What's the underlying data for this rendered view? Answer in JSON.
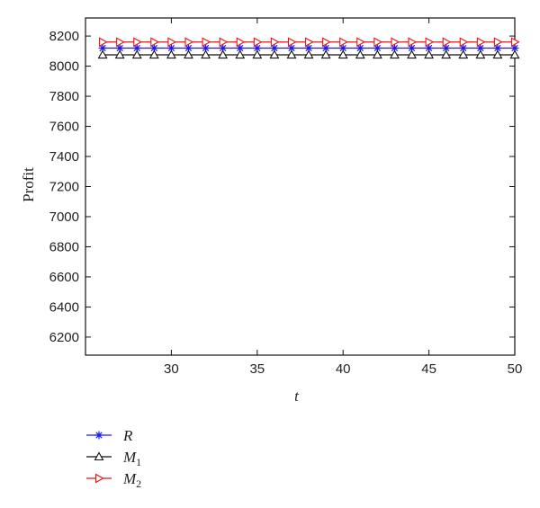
{
  "chart_data": {
    "type": "line",
    "title": "",
    "xlabel": "t",
    "ylabel": "Profit",
    "xlim": [
      25,
      50
    ],
    "ylim": [
      6080,
      8320
    ],
    "x_ticks": [
      30,
      35,
      40,
      45,
      50
    ],
    "y_ticks": [
      6200,
      6400,
      6600,
      6800,
      7000,
      7200,
      7400,
      7600,
      7800,
      8000,
      8200
    ],
    "grid": false,
    "legend_position": "below-left",
    "x": [
      26,
      27,
      28,
      29,
      30,
      31,
      32,
      33,
      34,
      35,
      36,
      37,
      38,
      39,
      40,
      41,
      42,
      43,
      44,
      45,
      46,
      47,
      48,
      49,
      50
    ],
    "series": [
      {
        "name": "R",
        "name_sub": "",
        "color": "#1a1aff",
        "marker": "asterisk",
        "values": [
          8120,
          8120,
          8120,
          8120,
          8120,
          8120,
          8120,
          8120,
          8120,
          8120,
          8120,
          8120,
          8120,
          8120,
          8120,
          8120,
          8120,
          8120,
          8120,
          8120,
          8120,
          8120,
          8120,
          8120,
          8120
        ]
      },
      {
        "name": "M",
        "name_sub": "1",
        "color": "#111111",
        "marker": "triangle-up",
        "values": [
          8075,
          8075,
          8075,
          8075,
          8075,
          8075,
          8075,
          8075,
          8075,
          8075,
          8075,
          8075,
          8075,
          8075,
          8075,
          8075,
          8075,
          8075,
          8075,
          8075,
          8075,
          8075,
          8075,
          8075,
          8075
        ]
      },
      {
        "name": "M",
        "name_sub": "2",
        "color": "#ee1111",
        "marker": "triangle-right",
        "values": [
          8160,
          8160,
          8160,
          8160,
          8160,
          8160,
          8160,
          8160,
          8160,
          8160,
          8160,
          8160,
          8160,
          8160,
          8160,
          8160,
          8160,
          8160,
          8160,
          8160,
          8160,
          8160,
          8160,
          8160,
          8160
        ]
      }
    ]
  }
}
